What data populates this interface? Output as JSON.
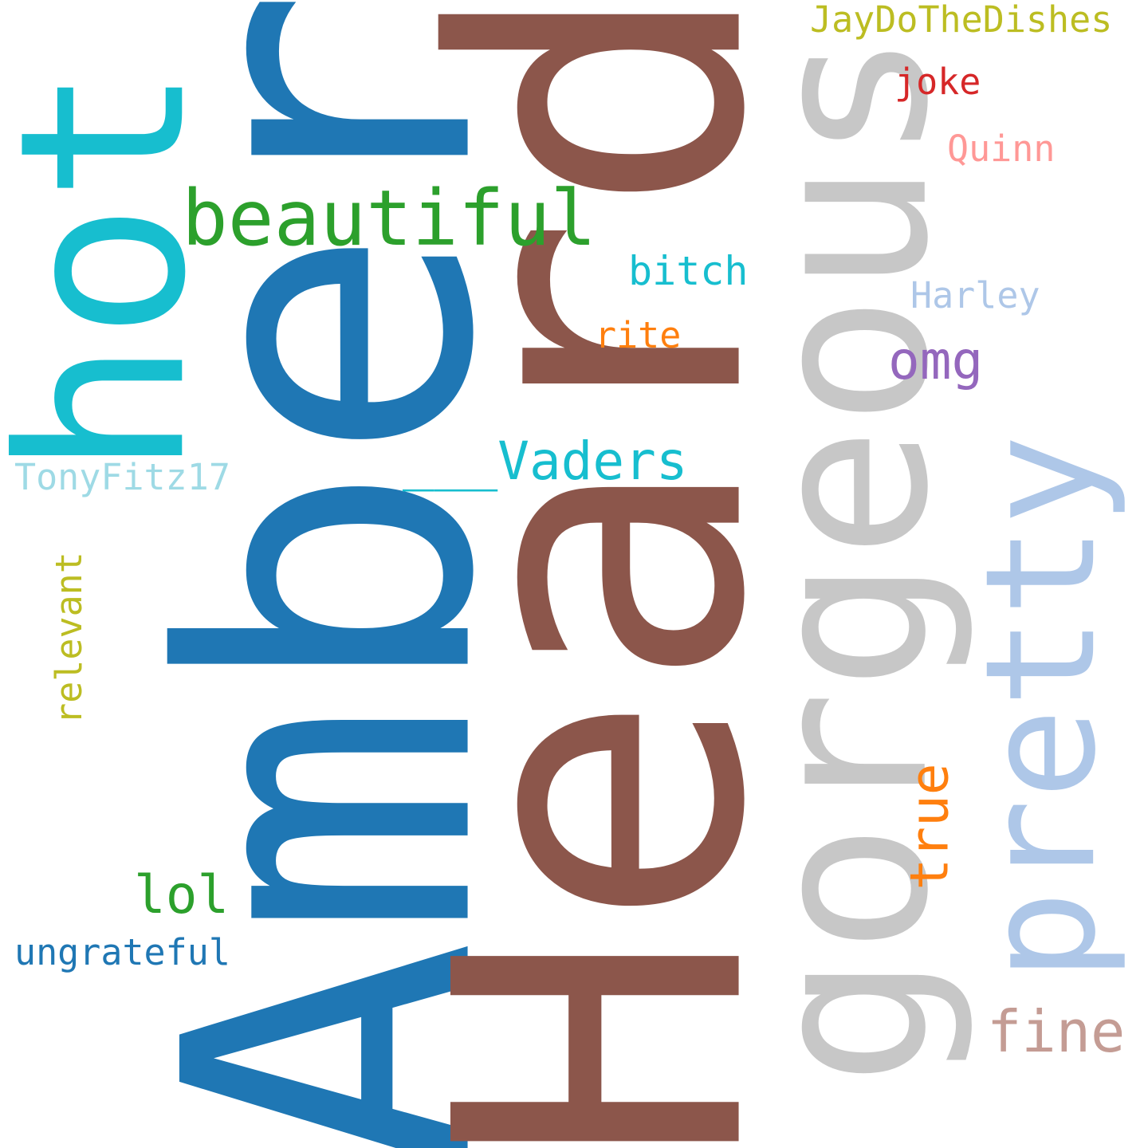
{
  "words": {
    "amber": {
      "text": "Amber",
      "color": "#1f77b4"
    },
    "heard": {
      "text": "Heard",
      "color": "#8c564b"
    },
    "gorgeous": {
      "text": "gorgeous",
      "color": "#c7c7c7"
    },
    "hot": {
      "text": "hot",
      "color": "#17becf"
    },
    "pretty": {
      "text": "pretty",
      "color": "#aec7e8"
    },
    "beautiful": {
      "text": "beautiful",
      "color": "#2ca02c"
    },
    "vaders": {
      "text": "___Vaders",
      "color": "#17becf"
    },
    "jaydothedishes": {
      "text": "JayDoTheDishes",
      "color": "#bcbd22"
    },
    "joke": {
      "text": "joke",
      "color": "#d62728"
    },
    "quinn": {
      "text": "Quinn",
      "color": "#ff9896"
    },
    "bitch": {
      "text": "bitch",
      "color": "#17becf"
    },
    "harley": {
      "text": "Harley",
      "color": "#aec7e8"
    },
    "rite": {
      "text": "rite",
      "color": "#ff7f0e"
    },
    "omg": {
      "text": "omg",
      "color": "#9467bd"
    },
    "tonyfitz17": {
      "text": "TonyFitz17",
      "color": "#9edae5"
    },
    "relevant": {
      "text": "relevant",
      "color": "#bcbd22"
    },
    "true": {
      "text": "true",
      "color": "#ff7f0e"
    },
    "lol": {
      "text": "lol",
      "color": "#2ca02c"
    },
    "ungrateful": {
      "text": "ungrateful",
      "color": "#1f77b4"
    },
    "fine": {
      "text": "fine",
      "color": "#c49c94"
    }
  }
}
